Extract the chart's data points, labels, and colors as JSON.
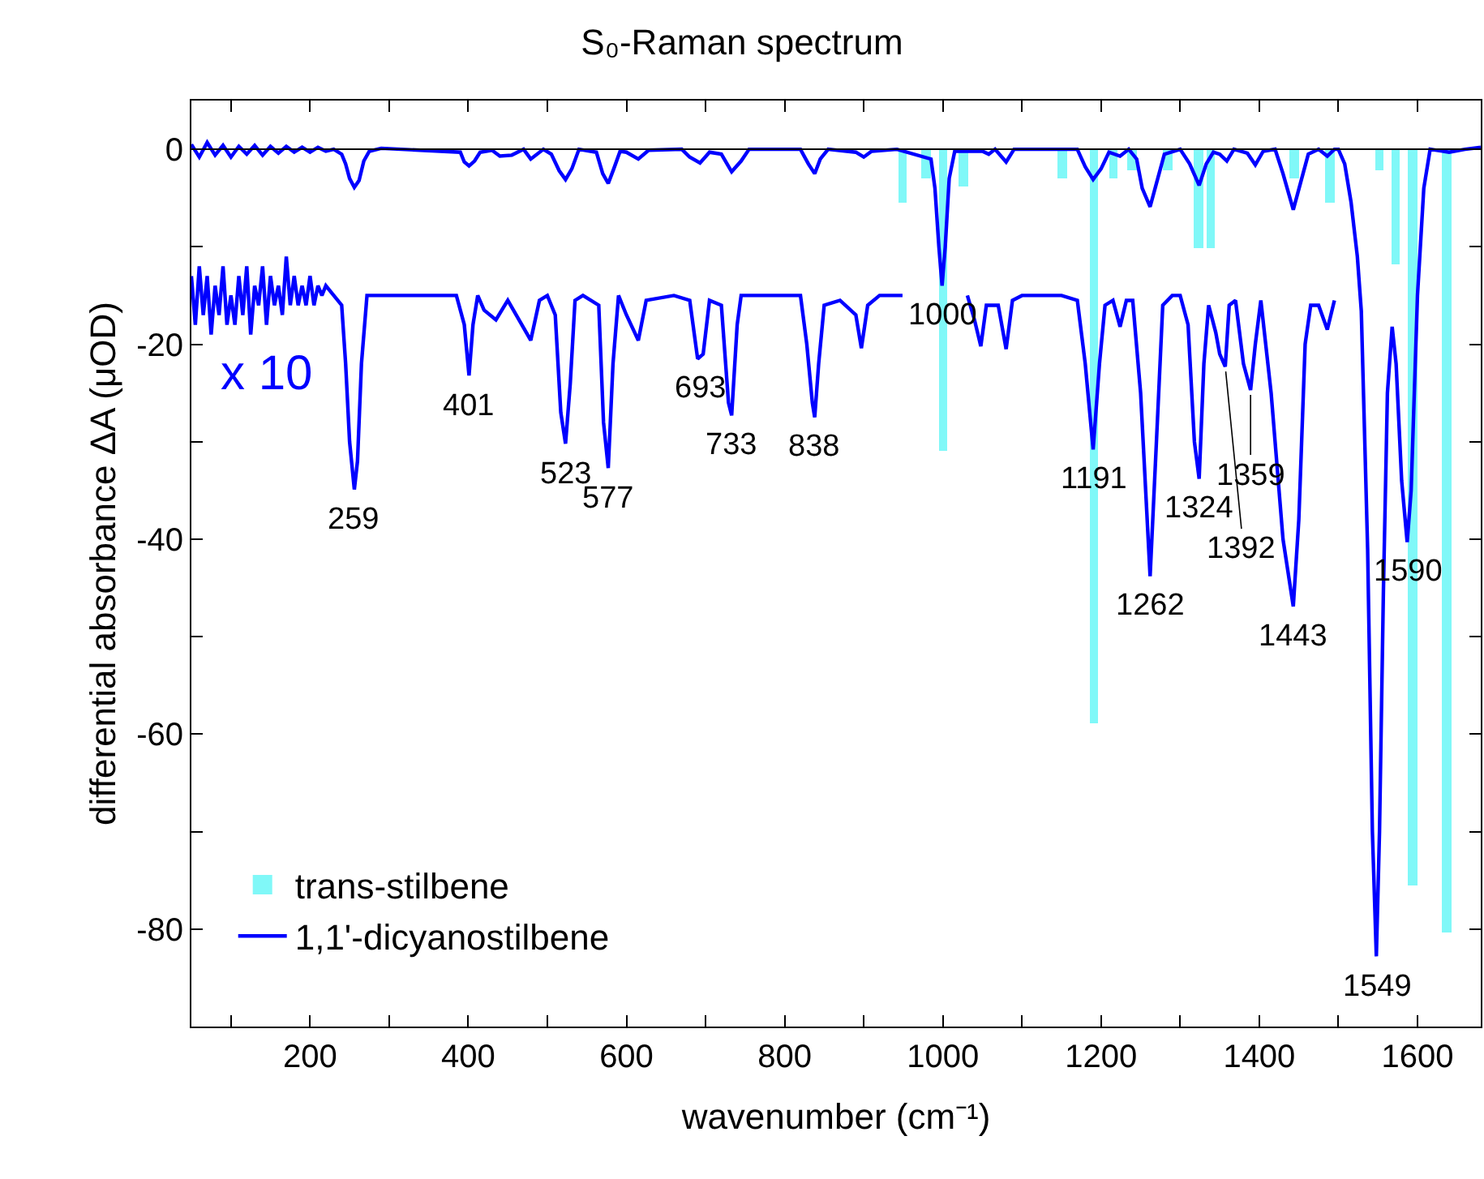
{
  "chart_data": {
    "type": "line",
    "title": "S₀-Raman spectrum",
    "xlabel": "wavenumber (cm⁻¹)",
    "ylabel": "differential absorbance ΔA (μOD)",
    "xlim": [
      50,
      1680
    ],
    "ylim": [
      -90,
      5
    ],
    "xticks": [
      {
        "value": 100,
        "label": null
      },
      200,
      {
        "value": 300,
        "label": null
      },
      400,
      {
        "value": 500,
        "label": null
      },
      600,
      {
        "value": 700,
        "label": null
      },
      800,
      {
        "value": 900,
        "label": null
      },
      1000,
      {
        "value": 1100,
        "label": null
      },
      1200,
      {
        "value": 1300,
        "label": null
      },
      1400,
      {
        "value": 1500,
        "label": null
      },
      1600
    ],
    "yticks": [
      {
        "value": -90,
        "label": null
      },
      -80,
      {
        "value": -70,
        "label": null
      },
      -60,
      {
        "value": -50,
        "label": null
      },
      -40,
      {
        "value": -30,
        "label": null
      },
      -20,
      {
        "value": -10,
        "label": null
      },
      0
    ],
    "legend": "bottom left",
    "marker": "none",
    "line_style": "solid",
    "ref_lines": [
      {
        "axis": "y",
        "value": 0,
        "color": "#000000"
      }
    ],
    "series": [
      {
        "name": "trans-stilbene",
        "type": "bar",
        "color": "#80f8f8",
        "x": [
          949,
          979,
          1000,
          1026,
          1151,
          1191,
          1216,
          1239,
          1284,
          1323,
          1339,
          1444,
          1489,
          1552,
          1572,
          1594,
          1637
        ],
        "values": [
          -5.4,
          -3.0,
          -30.9,
          -3.8,
          -3.0,
          -58.9,
          -3.0,
          -2.2,
          -2.2,
          -10.2,
          -10.2,
          -3.0,
          -5.4,
          -2.2,
          -11.8,
          -75.6,
          -80.3
        ]
      },
      {
        "name": "1,1'-dicyanostilbene",
        "color": "#0000ff",
        "x": [
          50,
          60,
          70,
          80,
          90,
          100,
          110,
          120,
          130,
          140,
          150,
          160,
          170,
          180,
          190,
          200,
          210,
          220,
          230,
          240,
          245,
          250,
          256,
          262,
          268,
          275,
          290,
          390,
          395,
          401,
          408,
          415,
          430,
          440,
          455,
          470,
          479,
          495,
          505,
          515,
          523,
          531,
          540,
          562,
          570,
          577,
          584,
          592,
          600,
          615,
          628,
          670,
          680,
          693,
          705,
          720,
          733,
          745,
          755,
          820,
          830,
          838,
          845,
          855,
          890,
          900,
          910,
          942,
          985,
          990,
          995,
          999,
          1003,
          1008,
          1015,
          1050,
          1058,
          1066,
          1080,
          1090,
          1170,
          1180,
          1190,
          1200,
          1210,
          1224,
          1235,
          1245,
          1252,
          1262,
          1270,
          1280,
          1300,
          1312,
          1324,
          1333,
          1342,
          1350,
          1359,
          1368,
          1385,
          1395,
          1405,
          1420,
          1430,
          1443,
          1452,
          1462,
          1475,
          1486,
          1495,
          1500,
          1508,
          1516,
          1524,
          1529,
          1537,
          1543,
          1548,
          1552,
          1557,
          1562,
          1568,
          1573,
          1580,
          1587,
          1592,
          1600,
          1608,
          1616,
          1640,
          1660,
          1680
        ],
        "values": [
          0.5,
          -0.8,
          0.7,
          -0.6,
          0.4,
          -0.8,
          0.3,
          -0.5,
          0.4,
          -0.6,
          0.3,
          -0.4,
          0.3,
          -0.3,
          0.2,
          -0.3,
          0.2,
          -0.2,
          0,
          -0.5,
          -1.5,
          -3.0,
          -3.9,
          -3.2,
          -1.2,
          -0.2,
          0.1,
          -0.3,
          -1.3,
          -1.7,
          -1.2,
          -0.3,
          -0.1,
          -0.7,
          -0.6,
          0,
          -1.0,
          0,
          -0.5,
          -2.2,
          -3.1,
          -2.0,
          0,
          -0.3,
          -2.5,
          -3.5,
          -2.0,
          -0.2,
          -0.3,
          -1.0,
          -0.1,
          0,
          -0.8,
          -1.4,
          -0.3,
          -0.5,
          -2.3,
          -1.2,
          0,
          0,
          -1.5,
          -2.5,
          -1.0,
          0,
          -0.3,
          -0.8,
          -0.2,
          0,
          -1.0,
          -4,
          -10,
          -14.0,
          -10,
          -3,
          -0.2,
          -0.2,
          -0.5,
          0,
          -1.3,
          0,
          0,
          -1.8,
          -3.1,
          -2.0,
          -0.3,
          -0.7,
          0,
          -1.0,
          -4,
          -5.9,
          -3.5,
          -0.5,
          0,
          -1.5,
          -3.7,
          -1.5,
          -0.3,
          -0.5,
          -1.2,
          0,
          -0.4,
          -1.6,
          -0.2,
          0,
          -2.5,
          -6.2,
          -3.5,
          -0.5,
          0,
          -0.7,
          0,
          0,
          -1.5,
          -5.4,
          -11,
          -16.6,
          -41,
          -70,
          -82.8,
          -70,
          -45,
          -25,
          -18.2,
          -22,
          -34,
          -40.3,
          -35,
          -15,
          -4,
          0,
          -0.3,
          0,
          0.2
        ]
      },
      {
        "color": "#0000ff",
        "x": [
          50,
          55,
          60,
          65,
          70,
          75,
          80,
          85,
          90,
          95,
          100,
          105,
          110,
          115,
          120,
          125,
          130,
          135,
          140,
          145,
          150,
          155,
          160,
          165,
          170,
          175,
          180,
          185,
          190,
          195,
          200,
          205,
          210,
          215,
          220,
          230,
          240,
          245,
          250,
          256,
          260,
          265,
          272,
          280,
          300,
          330,
          360,
          385,
          395,
          401,
          406,
          412,
          420,
          435,
          450,
          479,
          490,
          500,
          510,
          517,
          523,
          529,
          535,
          545,
          565,
          571,
          577,
          583,
          590,
          600,
          615,
          625,
          660,
          680,
          690,
          697,
          705,
          720,
          729,
          733,
          740,
          745,
          770,
          800,
          820,
          828,
          835,
          838,
          843,
          850,
          870,
          890,
          897,
          905,
          920,
          949,
          990,
          1031,
          1040,
          1048,
          1055,
          1070,
          1080,
          1088,
          1100,
          1150,
          1170,
          1180,
          1190,
          1198,
          1205,
          1215,
          1224,
          1232,
          1240,
          1250,
          1262,
          1270,
          1278,
          1290,
          1300,
          1310,
          1318,
          1324,
          1330,
          1336,
          1345,
          1350,
          1357,
          1362,
          1370,
          1380,
          1389,
          1395,
          1402,
          1415,
          1430,
          1443,
          1450,
          1458,
          1465,
          1475,
          1486,
          1495
        ],
        "values": [
          -13,
          -18,
          -12,
          -17,
          -13,
          -19,
          -14,
          -17,
          -12,
          -18,
          -15,
          -18,
          -13,
          -17,
          -12,
          -19,
          -14,
          -16,
          -12,
          -18,
          -13,
          -16,
          -14,
          -17,
          -11,
          -16,
          -13,
          -16,
          -14,
          -16,
          -13,
          -16,
          -14,
          -15,
          -14,
          -15,
          -16,
          -22,
          -30,
          -34.9,
          -32,
          -22,
          -15,
          -15,
          -15,
          -15,
          -15,
          -15,
          -18,
          -23.2,
          -18,
          -15,
          -16.5,
          -17.5,
          -15.5,
          -19.6,
          -15.5,
          -15,
          -17,
          -27,
          -30.2,
          -24,
          -15.5,
          -15,
          -16,
          -28,
          -32.7,
          -22,
          -15,
          -17,
          -19.6,
          -15.5,
          -15,
          -15.5,
          -21.5,
          -21,
          -15.5,
          -16,
          -26,
          -27.3,
          -18,
          -15,
          -15,
          -15,
          -15,
          -20,
          -26,
          -27.5,
          -22,
          -16,
          -15.5,
          -17,
          -20.4,
          -16,
          -15,
          -15,
          null,
          -15,
          -17.5,
          -20.2,
          -16,
          -16,
          -20.5,
          -15.5,
          -15,
          -15,
          -15.5,
          -22,
          -30.8,
          -22,
          -16,
          -15.5,
          -18.2,
          -15.5,
          -15.5,
          -25,
          -43.8,
          -30,
          -16,
          -15,
          -15,
          -18,
          -30,
          -33.8,
          -22,
          -16,
          -18.8,
          -21,
          -22.3,
          -16,
          -15.5,
          -22,
          -24.7,
          -20,
          -15.5,
          -25,
          -40,
          -46.9,
          -38,
          -20,
          -16,
          -16,
          -18.5,
          -15.5
        ]
      }
    ],
    "annotations": [
      "x 10",
      {
        "text": "259",
        "x": 256,
        "y": -34.9
      },
      {
        "text": "401",
        "x": 401,
        "y": -23.2
      },
      {
        "text": "523",
        "x": 523,
        "y": -30.2
      },
      {
        "text": "577",
        "x": 577,
        "y": -32.7
      },
      {
        "text": "693",
        "x": 693,
        "y": -21.5
      },
      {
        "text": "733",
        "x": 733,
        "y": -27.3
      },
      {
        "text": "838",
        "x": 838,
        "y": -27.5
      },
      {
        "text": "1000",
        "x": 1000,
        "y": -14.0
      },
      {
        "text": "1191",
        "x": 1190,
        "y": -30.8
      },
      {
        "text": "1262",
        "x": 1262,
        "y": -43.8
      },
      {
        "text": "1324",
        "x": 1324,
        "y": -33.8
      },
      {
        "text": "1392",
        "x": 1357,
        "y": -22.3
      },
      {
        "text": "1359",
        "x": 1389,
        "y": -24.7
      },
      {
        "text": "1443",
        "x": 1443,
        "y": -46.9
      },
      {
        "text": "1549",
        "x": 1548,
        "y": -82.8
      },
      {
        "text": "1590",
        "x": 1587,
        "y": -40.3
      }
    ]
  }
}
